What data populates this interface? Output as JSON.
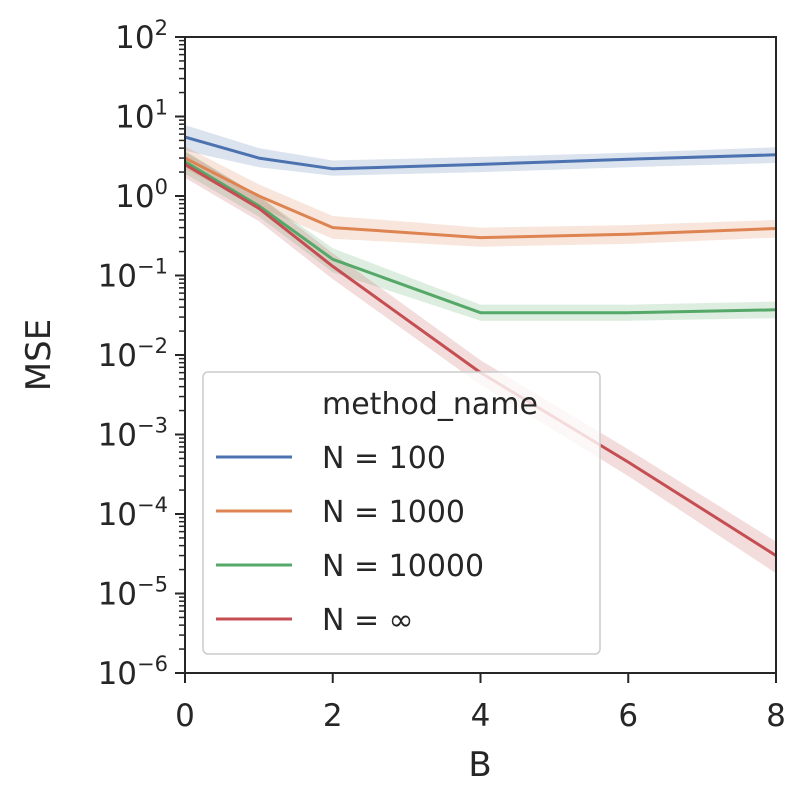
{
  "chart_data": {
    "type": "line",
    "title": "",
    "xlabel": "B",
    "ylabel": "MSE",
    "x": [
      0,
      1,
      2,
      4,
      6,
      8
    ],
    "xlim": [
      0,
      8
    ],
    "xticks": [
      "0",
      "2",
      "4",
      "6",
      "8"
    ],
    "ylim": [
      1e-06,
      100
    ],
    "yscale": "log",
    "yticks": [
      {
        "base": "10",
        "exp": "2"
      },
      {
        "base": "10",
        "exp": "1"
      },
      {
        "base": "10",
        "exp": "0"
      },
      {
        "base": "10",
        "exp": "−1"
      },
      {
        "base": "10",
        "exp": "−2"
      },
      {
        "base": "10",
        "exp": "−3"
      },
      {
        "base": "10",
        "exp": "−4"
      },
      {
        "base": "10",
        "exp": "−5"
      },
      {
        "base": "10",
        "exp": "−6"
      }
    ],
    "grid": false,
    "legend": {
      "title": "method_name",
      "placement": "lower-left"
    },
    "series": [
      {
        "name": "N = 100",
        "color": "#4c72b0",
        "values": [
          5.5,
          3.0,
          2.2,
          2.5,
          2.9,
          3.3
        ],
        "lower": [
          3.7,
          2.3,
          1.8,
          2.0,
          2.3,
          2.6
        ],
        "upper": [
          7.8,
          4.0,
          2.8,
          3.1,
          3.5,
          4.1
        ]
      },
      {
        "name": "N = 1000",
        "color": "#dd8452",
        "values": [
          3.0,
          1.0,
          0.4,
          0.3,
          0.33,
          0.39
        ],
        "lower": [
          2.2,
          0.72,
          0.29,
          0.23,
          0.25,
          0.3
        ],
        "upper": [
          4.2,
          1.4,
          0.56,
          0.4,
          0.43,
          0.5
        ]
      },
      {
        "name": "N = 10000",
        "color": "#55a868",
        "values": [
          2.7,
          0.75,
          0.16,
          0.034,
          0.034,
          0.037
        ],
        "lower": [
          1.9,
          0.55,
          0.11,
          0.027,
          0.027,
          0.029
        ],
        "upper": [
          3.7,
          1.0,
          0.22,
          0.043,
          0.043,
          0.047
        ]
      },
      {
        "name": "N = ∞",
        "color": "#c44e52",
        "values": [
          2.5,
          0.7,
          0.13,
          0.006,
          0.00045,
          3e-05
        ],
        "lower": [
          1.7,
          0.48,
          0.09,
          0.0042,
          0.0003,
          1.8e-05
        ],
        "upper": [
          3.6,
          1.0,
          0.19,
          0.0086,
          0.00065,
          4.5e-05
        ]
      }
    ]
  }
}
